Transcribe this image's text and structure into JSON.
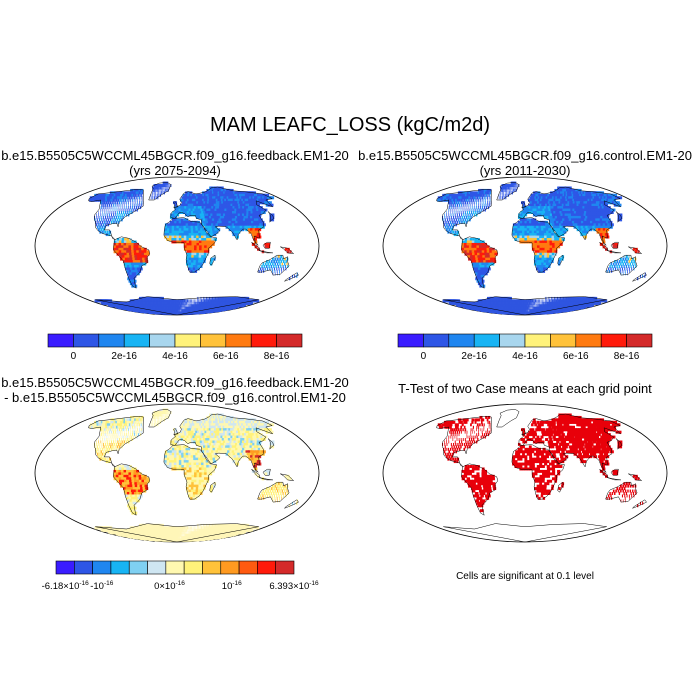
{
  "figure": {
    "title": "MAM LEAFC_LOSS (kgC/m2d)"
  },
  "panels": [
    {
      "id": "feedback",
      "title_line1": "b.e15.B5505C5WCCML45BGCR.f09_g16.feedback.EM1-20",
      "title_line2": "(yrs 2075-2094)"
    },
    {
      "id": "control",
      "title_line1": "b.e15.B5505C5WCCML45BGCR.f09_g16.control.EM1-20",
      "title_line2": "(yrs 2011-2030)"
    },
    {
      "id": "difference",
      "title_line1": "b.e15.B5505C5WCCML45BGCR.f09_g16.feedback.EM1-20",
      "title_line2": "- b.e15.B5505C5WCCML45BGCR.f09_g16.control.EM1-20"
    },
    {
      "id": "ttest",
      "title_line1": "T-Test of two Case means at each grid point",
      "note": "Cells are significant at 0.1 level"
    }
  ],
  "colorbars": {
    "absolute": {
      "colors": [
        "#3a1cff",
        "#2e56e6",
        "#1f86f0",
        "#18b4f4",
        "#a8d6ee",
        "#fff27a",
        "#ffc23a",
        "#ff7a10",
        "#ff1a0a",
        "#d42a2a"
      ],
      "labels": [
        "0",
        "2e-16",
        "4e-16",
        "6e-16",
        "8e-16"
      ]
    },
    "difference": {
      "colors": [
        "#3a1cff",
        "#2e56e6",
        "#1f86f0",
        "#18b4f4",
        "#7fd0f2",
        "#cfe6f2",
        "#fff8b0",
        "#fff27a",
        "#ffc23a",
        "#ff9a20",
        "#ff5a10",
        "#ff1a0a",
        "#d42a2a"
      ],
      "labels": [
        {
          "base": "-6.18×10",
          "exp": "-16"
        },
        {
          "base": "-10",
          "exp": "-16"
        },
        {
          "base": "0×10",
          "exp": "-16"
        },
        {
          "base": "10",
          "exp": "-16"
        },
        {
          "base": "6.393×10",
          "exp": "-16"
        }
      ]
    }
  },
  "map_colors": {
    "ocean": "#ffffff",
    "border": "#000000",
    "antarctica_abs": "#2f55e0",
    "antarctica_diff": "#fff6b8",
    "significant": "#e8000a"
  }
}
